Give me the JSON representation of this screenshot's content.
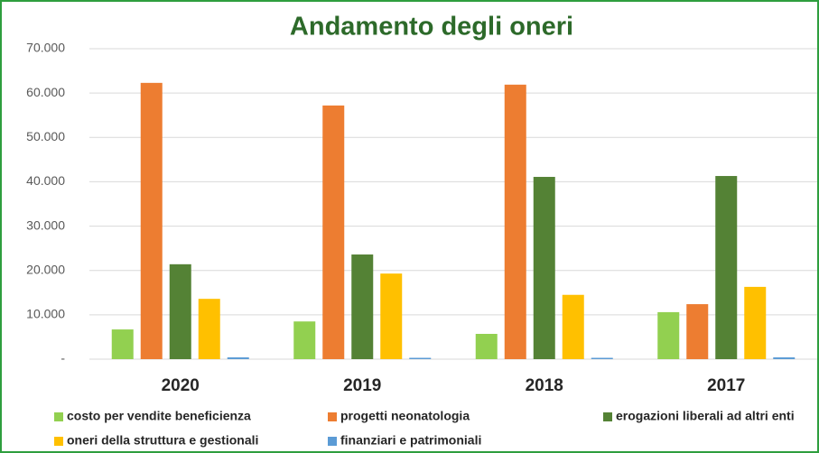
{
  "chart_data": {
    "type": "bar",
    "title": "Andamento degli oneri",
    "categories": [
      "2020",
      "2019",
      "2018",
      "2017"
    ],
    "series": [
      {
        "name": "costo per vendite beneficienza",
        "color": "#92d050",
        "values": [
          6700,
          8500,
          5700,
          10600
        ]
      },
      {
        "name": "progetti neonatologia",
        "color": "#ed7d31",
        "values": [
          62300,
          57200,
          61900,
          12400
        ]
      },
      {
        "name": "erogazioni liberali ad altri enti",
        "color": "#548235",
        "values": [
          21400,
          23600,
          41100,
          41300
        ]
      },
      {
        "name": "oneri della struttura e gestionali",
        "color": "#ffc000",
        "values": [
          13600,
          19300,
          14500,
          16300
        ]
      },
      {
        "name": "finanziari e patrimoniali",
        "color": "#5b9bd5",
        "values": [
          400,
          300,
          300,
          400
        ]
      }
    ],
    "ylim": [
      0,
      70000
    ],
    "yticks": [
      {
        "value": 0,
        "label": "-"
      },
      {
        "value": 10000,
        "label": "10.000"
      },
      {
        "value": 20000,
        "label": "20.000"
      },
      {
        "value": 30000,
        "label": "30.000"
      },
      {
        "value": 40000,
        "label": "40.000"
      },
      {
        "value": 50000,
        "label": "50.000"
      },
      {
        "value": 60000,
        "label": "60.000"
      },
      {
        "value": 70000,
        "label": "70.000"
      }
    ],
    "grid": true,
    "legend": "bottom"
  }
}
